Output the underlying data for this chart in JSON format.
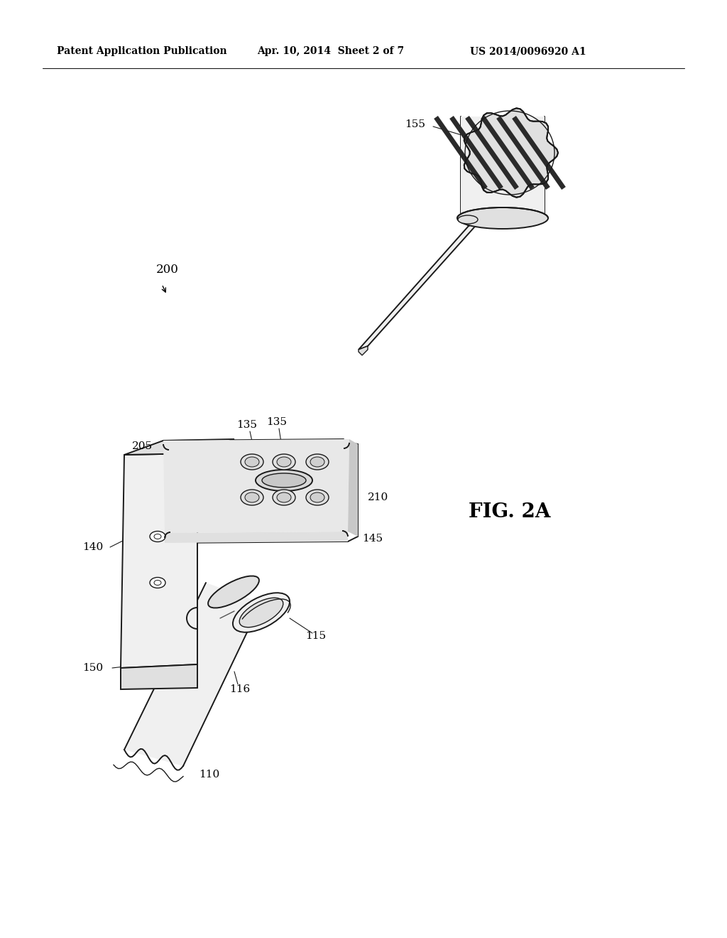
{
  "bg_color": "#ffffff",
  "header_left": "Patent Application Publication",
  "header_mid": "Apr. 10, 2014  Sheet 2 of 7",
  "header_right": "US 2014/0096920 A1",
  "fig_label": "FIG. 2A",
  "line_color": "#1a1a1a",
  "fill_light": "#f0f0f0",
  "fill_mid": "#e0e0e0",
  "fill_dark": "#c8c8c8",
  "fill_white": "#ffffff"
}
